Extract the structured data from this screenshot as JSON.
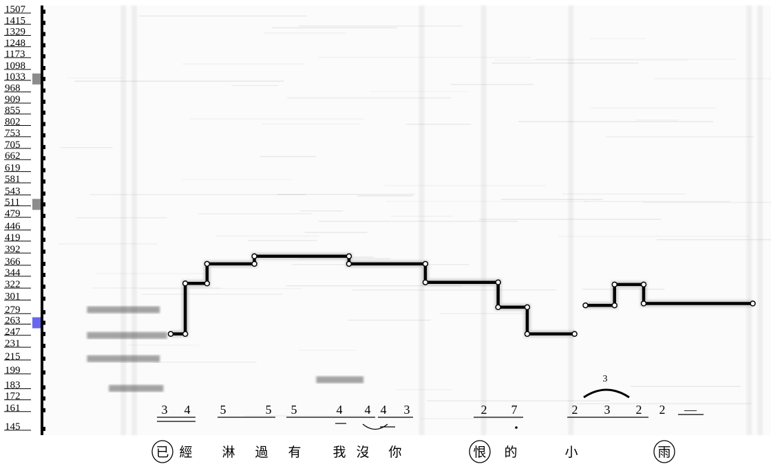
{
  "chart_data": {
    "type": "heatmap",
    "title": "",
    "xlabel": "",
    "ylabel": "",
    "y_scale": "log",
    "ylim": [
      140,
      1560
    ],
    "y_ticks": [
      1507,
      1415,
      1329,
      1248,
      1173,
      1098,
      1033,
      968,
      909,
      855,
      802,
      753,
      705,
      662,
      619,
      581,
      543,
      511,
      479,
      446,
      419,
      392,
      366,
      344,
      322,
      301,
      279,
      263,
      247,
      231,
      215,
      199,
      183,
      172,
      161,
      145
    ],
    "highlighted_ticks": [
      {
        "value": 1033,
        "color": "#8c8c8c"
      },
      {
        "value": 511,
        "color": "#8c8c8c"
      },
      {
        "value": 263,
        "color": "#6666ee"
      }
    ],
    "fundamental_segments": [
      {
        "t0": 0.175,
        "t1": 0.195,
        "hz": 247
      },
      {
        "t0": 0.195,
        "t1": 0.225,
        "hz": 328
      },
      {
        "t0": 0.225,
        "t1": 0.29,
        "hz": 366
      },
      {
        "t0": 0.29,
        "t1": 0.42,
        "hz": 382
      },
      {
        "t0": 0.42,
        "t1": 0.525,
        "hz": 366
      },
      {
        "t0": 0.525,
        "t1": 0.625,
        "hz": 330
      },
      {
        "t0": 0.625,
        "t1": 0.665,
        "hz": 287
      },
      {
        "t0": 0.665,
        "t1": 0.73,
        "hz": 247
      },
      {
        "t0": 0.745,
        "t1": 0.785,
        "hz": 290
      },
      {
        "t0": 0.785,
        "t1": 0.825,
        "hz": 326
      },
      {
        "t0": 0.825,
        "t1": 0.975,
        "hz": 293
      }
    ],
    "accompaniment_bands": [
      {
        "t0": 0.06,
        "t1": 0.16,
        "hz": 283
      },
      {
        "t0": 0.06,
        "t1": 0.17,
        "hz": 245
      },
      {
        "t0": 0.06,
        "t1": 0.16,
        "hz": 215
      },
      {
        "t0": 0.09,
        "t1": 0.165,
        "hz": 182
      },
      {
        "t0": 0.375,
        "t1": 0.44,
        "hz": 191
      }
    ],
    "jianpu": [
      "3",
      "4",
      "5",
      "5",
      "5",
      "4",
      "4",
      "4",
      "3",
      "2",
      "7",
      "2",
      "3",
      "2",
      "2",
      "—"
    ],
    "triplet_label": "3",
    "lyrics": [
      "已",
      "經",
      "淋",
      "過",
      "有",
      "我",
      "沒",
      "你",
      "恨",
      "的",
      "小",
      "雨"
    ],
    "circled_lyrics": [
      "已",
      "恨",
      "雨"
    ]
  }
}
